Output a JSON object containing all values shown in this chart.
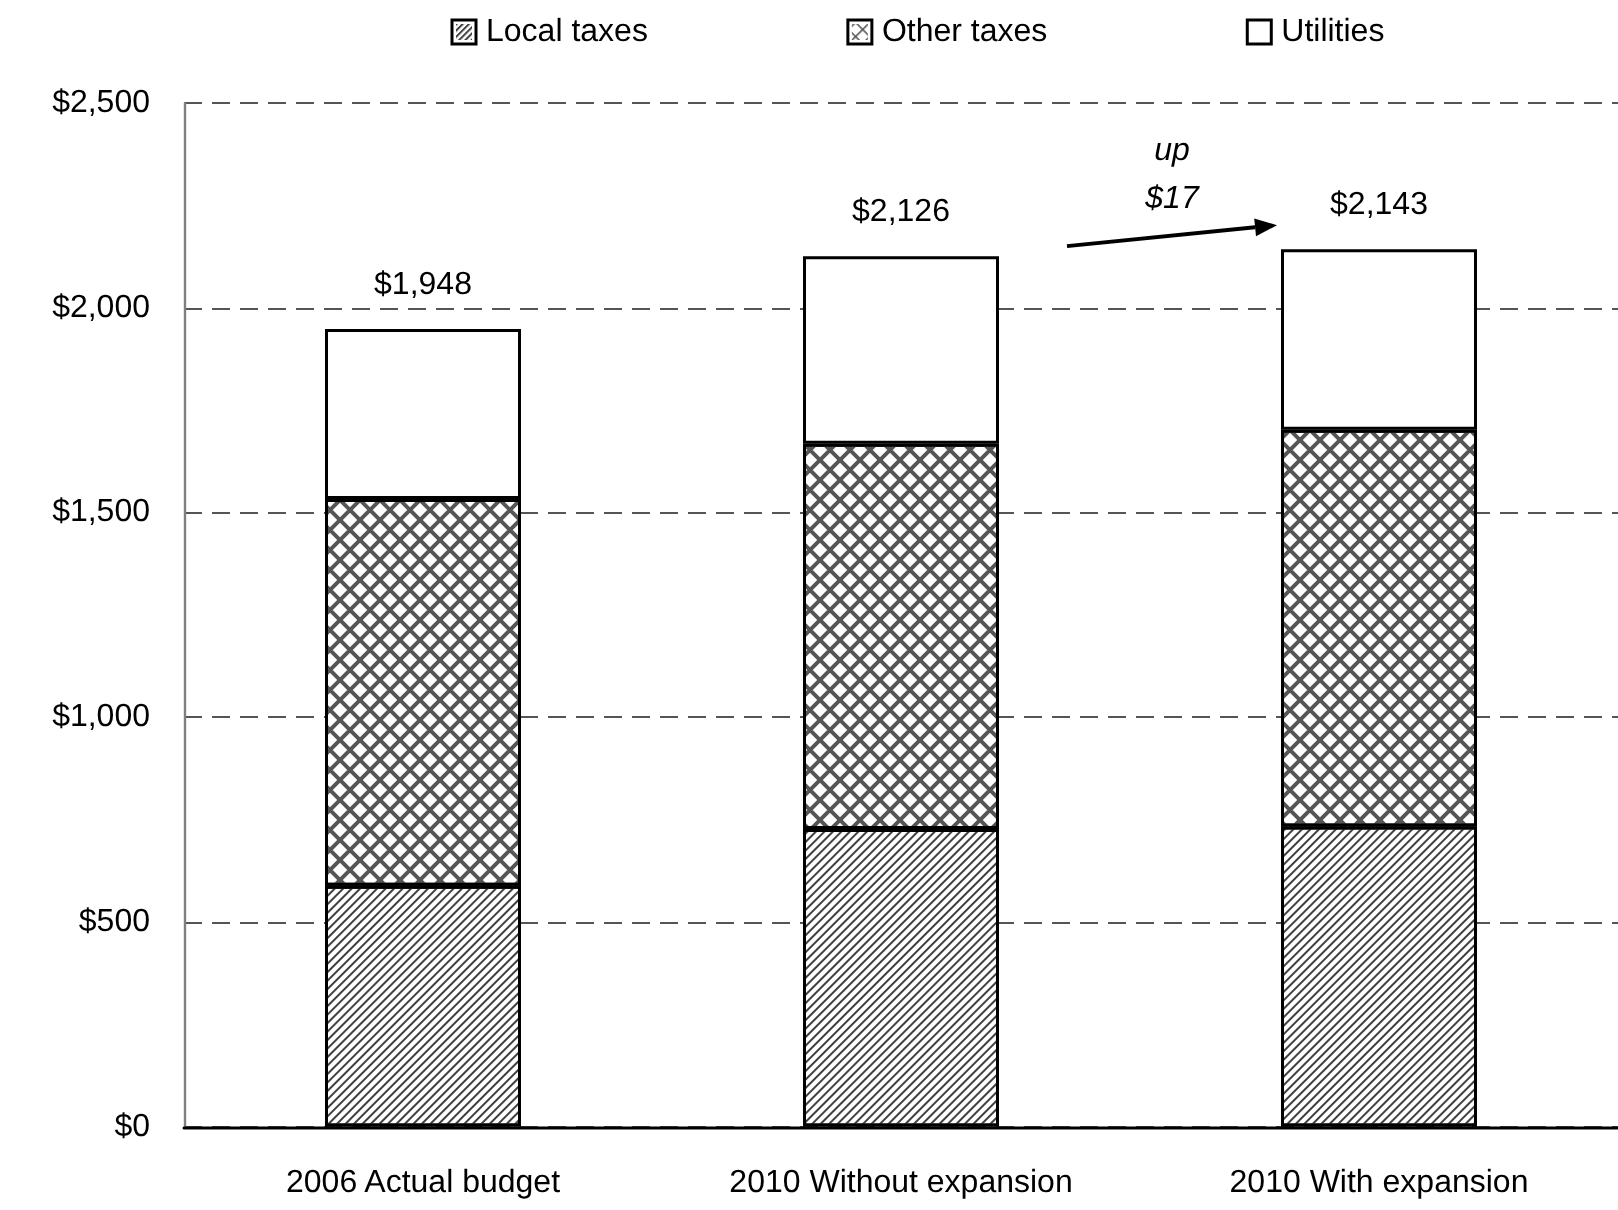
{
  "chart_data": {
    "type": "bar",
    "stacked": true,
    "categories": [
      "2006 Actual budget",
      "2010 Without expansion",
      "2010 With expansion"
    ],
    "series": [
      {
        "name": "Local taxes",
        "color": "#ffffff",
        "values": [
          588,
          727,
          733
        ]
      },
      {
        "name": "Other taxes",
        "color": "#ffffff",
        "values": [
          945,
          941,
          969
        ]
      },
      {
        "name": "Utilities",
        "color": "#ffffff",
        "values": [
          415,
          458,
          441
        ]
      }
    ],
    "totals": [
      "$1,948",
      "$2,126",
      "$2,143"
    ],
    "ylim": [
      0,
      2500
    ],
    "yticks": [
      {
        "value": 0,
        "label": "$0"
      },
      {
        "value": 500,
        "label": "$500"
      },
      {
        "value": 1000,
        "label": "$1,000"
      },
      {
        "value": 1500,
        "label": "$1,500"
      },
      {
        "value": 2000,
        "label": "$2,000"
      },
      {
        "value": 2500,
        "label": "$2,500"
      }
    ],
    "grid": "y",
    "legend": "top",
    "annotations": [
      "up $17"
    ]
  }
}
